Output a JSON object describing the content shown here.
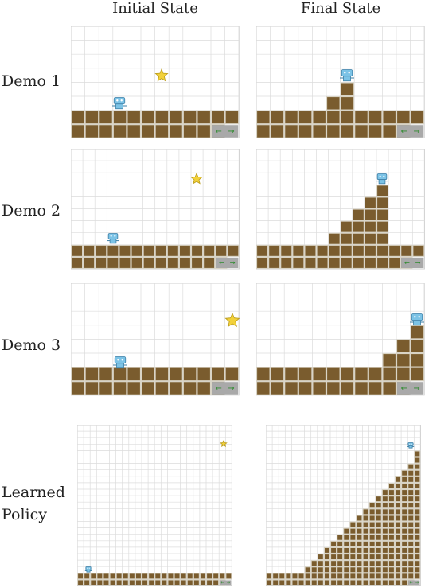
{
  "headers": {
    "initial": "Initial State",
    "final": "Final State"
  },
  "rows": [
    {
      "label": "Demo 1"
    },
    {
      "label": "Demo 2"
    },
    {
      "label": "Demo 3"
    },
    {
      "label_line1": "Learned",
      "label_line2": "Policy"
    }
  ],
  "colors": {
    "brick": "#7a5c2e",
    "brick_border": "#d8d2c2",
    "grid": "#dcdcdc",
    "star": "#f2d13a",
    "robot": "#7cc3e6",
    "arrow_box": "#a9a9a9",
    "arrow": "#2e8b2e"
  },
  "icons": {
    "arrows": "left-right-arrow-icon",
    "star": "star-icon",
    "robot": "robot-icon"
  }
}
